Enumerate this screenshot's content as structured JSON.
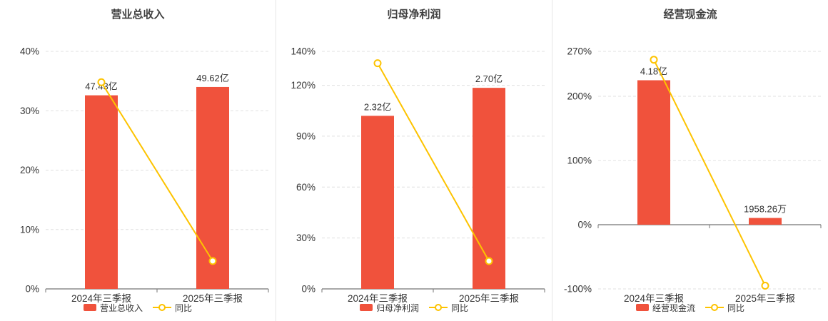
{
  "colors": {
    "bar": "#f0523c",
    "line": "#fdc300",
    "grid": "#e0e0e0",
    "axis": "#757575",
    "text": "#333333",
    "title": "#404040"
  },
  "chart_data": [
    {
      "type": "bar+line",
      "title": "营业总收入",
      "categories": [
        "2024年三季报",
        "2025年三季报"
      ],
      "bar_series": {
        "name": "营业总收入",
        "labels": [
          "47.43亿",
          "49.62亿"
        ],
        "axis_heights_pct": [
          32.6,
          34
        ]
      },
      "line_series": {
        "name": "同比",
        "values_pct": [
          34.8,
          4.7
        ]
      },
      "y_axis": {
        "min": 0,
        "max": 40,
        "ticks": [
          40,
          30,
          20,
          10,
          0
        ],
        "unit": "%"
      },
      "legend_position": "bottom",
      "grid": "dashed-horizontal"
    },
    {
      "type": "bar+line",
      "title": "归母净利润",
      "categories": [
        "2024年三季报",
        "2025年三季报"
      ],
      "bar_series": {
        "name": "归母净利润",
        "labels": [
          "2.32亿",
          "2.70亿"
        ],
        "axis_heights_pct": [
          102,
          118.5
        ]
      },
      "line_series": {
        "name": "同比",
        "values_pct": [
          133,
          16.4
        ]
      },
      "y_axis": {
        "min": 0,
        "max": 140,
        "ticks": [
          140,
          120,
          90,
          60,
          30,
          0
        ],
        "unit": "%"
      },
      "legend_position": "bottom",
      "grid": "dashed-horizontal"
    },
    {
      "type": "bar+line",
      "title": "经营现金流",
      "categories": [
        "2024年三季报",
        "2025年三季报"
      ],
      "bar_series": {
        "name": "经营现金流",
        "labels": [
          "4.18亿",
          "1958.26万"
        ],
        "axis_heights_pct": [
          225,
          10.5
        ]
      },
      "line_series": {
        "name": "同比",
        "values_pct": [
          257,
          -95
        ]
      },
      "y_axis": {
        "min": -100,
        "max": 270,
        "ticks": [
          270,
          200,
          100,
          0,
          -100
        ],
        "unit": "%"
      },
      "legend_position": "bottom",
      "grid": "dashed-horizontal"
    }
  ]
}
